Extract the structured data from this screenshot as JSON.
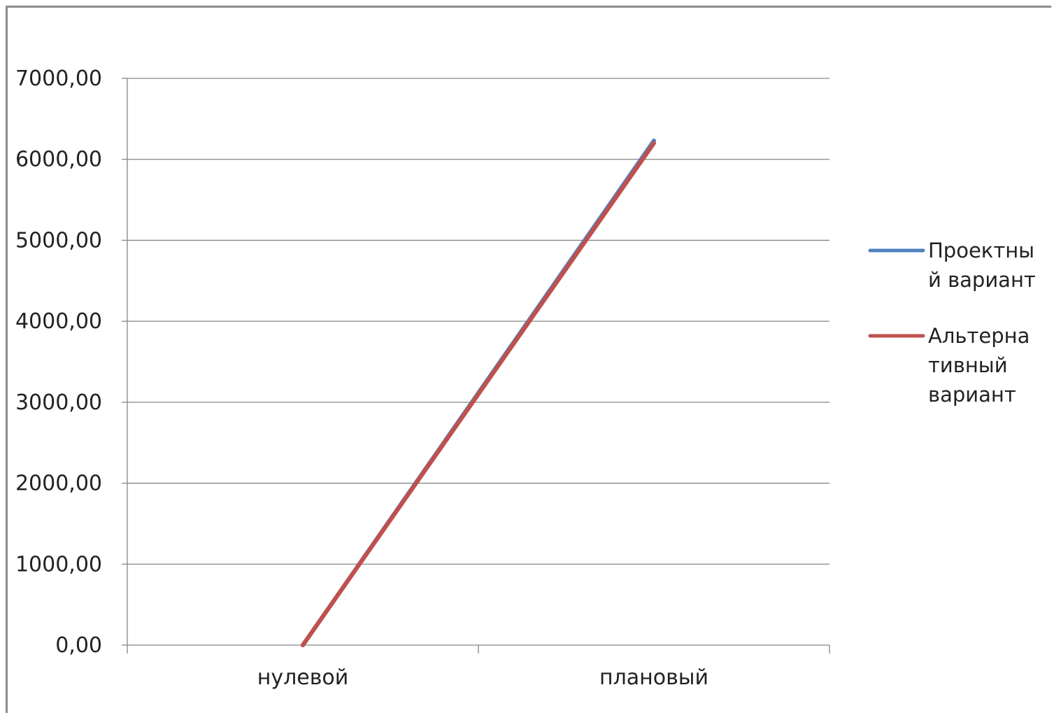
{
  "chart_data": {
    "type": "line",
    "categories": [
      "нулевой",
      "плановый"
    ],
    "series": [
      {
        "name": "Проектный вариант",
        "legend_lines": [
          "Проектны",
          "й вариант"
        ],
        "color": "#4f81bd",
        "values": [
          0,
          6230
        ]
      },
      {
        "name": "Альтернативный вариант",
        "legend_lines": [
          "Альтерна",
          "тивный",
          "вариант"
        ],
        "color": "#c0504d",
        "values": [
          0,
          6200
        ]
      }
    ],
    "y_ticks": [
      "0,00",
      "1000,00",
      "2000,00",
      "3000,00",
      "4000,00",
      "5000,00",
      "6000,00",
      "7000,00"
    ],
    "ylim": [
      0,
      7000
    ],
    "ystep": 1000,
    "grid": true,
    "legend_position": "right",
    "title": "",
    "xlabel": "",
    "ylabel": ""
  },
  "colors": {
    "grid": "#868686",
    "axis": "#868686",
    "frame": "#8c8c8c"
  }
}
